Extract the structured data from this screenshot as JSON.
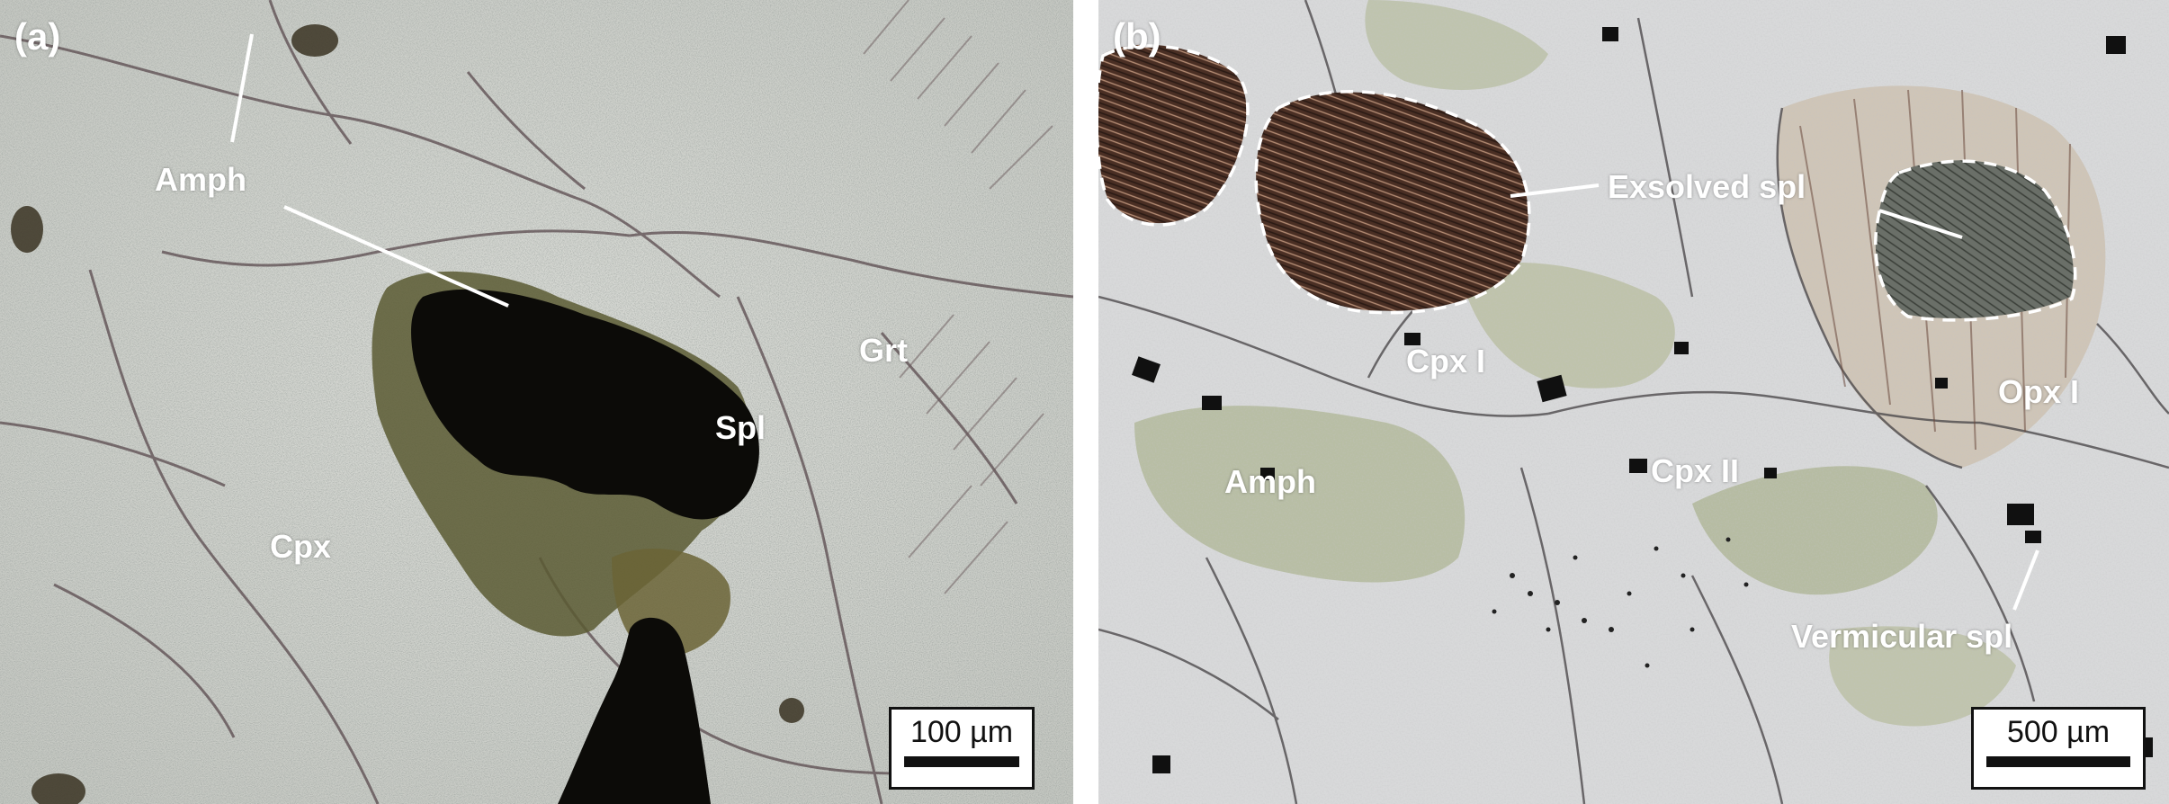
{
  "figure": {
    "panels": [
      {
        "id": "a",
        "letter": "(a)",
        "labels": {
          "amph": "Amph",
          "grt": "Grt",
          "spl": "Spl",
          "cpx": "Cpx"
        },
        "scale_bar": "100 µm"
      },
      {
        "id": "b",
        "letter": "(b)",
        "labels": {
          "exsolved_spl": "Exsolved spl",
          "cpx_i": "Cpx I",
          "opx_i": "Opx I",
          "amph": "Amph",
          "cpx_ii": "Cpx II",
          "vermicular_spl": "Vermicular spl"
        },
        "scale_bar": "500 µm"
      }
    ],
    "colors": {
      "label_text": "#ffffff",
      "scale_bar_fill": "#ffffff",
      "scale_bar_ink": "#111111",
      "gutter": "#ffffff"
    }
  }
}
